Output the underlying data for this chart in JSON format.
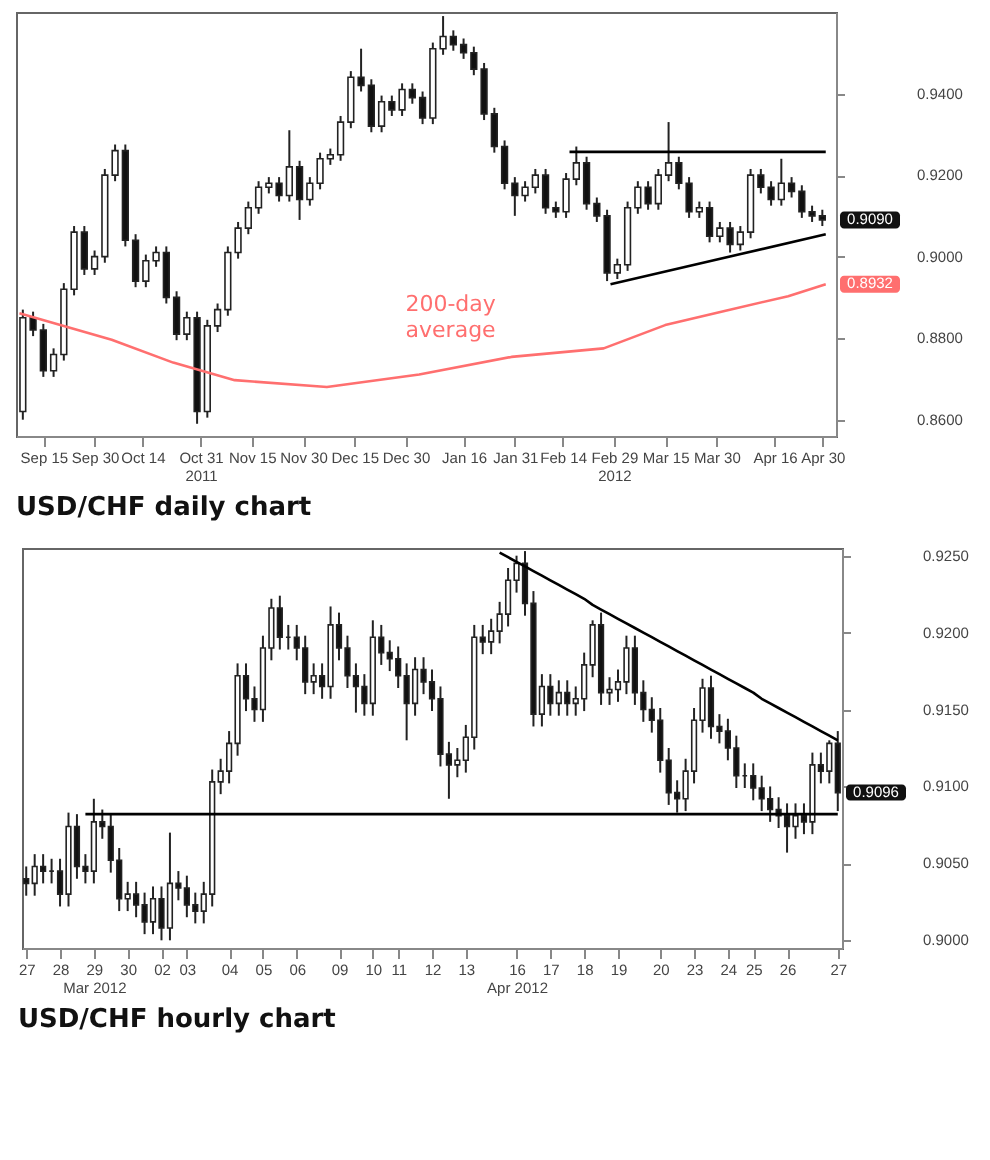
{
  "chart_data": [
    {
      "type": "candlestick",
      "title": "USD/CHF daily chart",
      "x": [
        "2011-09-09",
        "2011-09-12",
        "2011-09-15",
        "2011-09-18",
        "2011-09-21",
        "2011-09-24",
        "2011-09-27",
        "2011-09-30",
        "2011-10-03",
        "2011-10-06",
        "2011-10-09",
        "2011-10-12",
        "2011-10-15",
        "2011-10-18",
        "2011-10-21",
        "2011-10-24",
        "2011-10-27",
        "2011-10-30",
        "2011-11-02",
        "2011-11-05",
        "2011-11-08",
        "2011-11-11",
        "2011-11-14",
        "2011-11-17",
        "2011-11-20",
        "2011-11-23",
        "2011-11-26",
        "2011-11-29",
        "2011-12-02",
        "2011-12-05",
        "2011-12-08",
        "2011-12-11",
        "2011-12-14",
        "2011-12-17",
        "2011-12-20",
        "2011-12-23",
        "2011-12-26",
        "2011-12-29",
        "2012-01-01",
        "2012-01-04",
        "2012-01-07",
        "2012-01-10",
        "2012-01-13",
        "2012-01-16",
        "2012-01-19",
        "2012-01-22",
        "2012-01-25",
        "2012-01-28",
        "2012-01-31",
        "2012-02-03",
        "2012-02-06",
        "2012-02-09",
        "2012-02-12",
        "2012-02-15",
        "2012-02-18",
        "2012-02-21",
        "2012-02-24",
        "2012-02-27",
        "2012-03-01",
        "2012-03-04",
        "2012-03-07",
        "2012-03-10",
        "2012-03-13",
        "2012-03-16",
        "2012-03-19",
        "2012-03-22",
        "2012-03-25",
        "2012-03-28",
        "2012-03-31",
        "2012-04-03",
        "2012-04-06",
        "2012-04-09",
        "2012-04-12",
        "2012-04-15",
        "2012-04-18",
        "2012-04-21",
        "2012-04-24",
        "2012-04-27",
        "2012-04-30"
      ],
      "ohlc": [
        [
          0.862,
          0.887,
          0.86,
          0.885
        ],
        [
          0.885,
          0.8865,
          0.8805,
          0.882
        ],
        [
          0.882,
          0.8835,
          0.8705,
          0.872
        ],
        [
          0.872,
          0.8775,
          0.8705,
          0.876
        ],
        [
          0.876,
          0.8935,
          0.8745,
          0.892
        ],
        [
          0.892,
          0.9075,
          0.8905,
          0.906
        ],
        [
          0.906,
          0.9075,
          0.8955,
          0.897
        ],
        [
          0.897,
          0.9015,
          0.8955,
          0.9
        ],
        [
          0.9,
          0.9215,
          0.8985,
          0.92
        ],
        [
          0.92,
          0.9275,
          0.9185,
          0.926
        ],
        [
          0.926,
          0.9275,
          0.9025,
          0.904
        ],
        [
          0.904,
          0.9055,
          0.8925,
          0.894
        ],
        [
          0.894,
          0.9005,
          0.8925,
          0.899
        ],
        [
          0.899,
          0.9025,
          0.8975,
          0.901
        ],
        [
          0.901,
          0.9025,
          0.8885,
          0.89
        ],
        [
          0.89,
          0.8915,
          0.8795,
          0.881
        ],
        [
          0.881,
          0.8865,
          0.8795,
          0.885
        ],
        [
          0.885,
          0.8865,
          0.859,
          0.862
        ],
        [
          0.862,
          0.8845,
          0.8605,
          0.883
        ],
        [
          0.883,
          0.8885,
          0.8815,
          0.887
        ],
        [
          0.887,
          0.9025,
          0.8855,
          0.901
        ],
        [
          0.901,
          0.9085,
          0.8995,
          0.907
        ],
        [
          0.907,
          0.9135,
          0.9055,
          0.912
        ],
        [
          0.912,
          0.9185,
          0.9105,
          0.917
        ],
        [
          0.917,
          0.9195,
          0.9155,
          0.918
        ],
        [
          0.918,
          0.9195,
          0.9135,
          0.915
        ],
        [
          0.915,
          0.931,
          0.9135,
          0.922
        ],
        [
          0.922,
          0.9235,
          0.909,
          0.914
        ],
        [
          0.914,
          0.9195,
          0.9125,
          0.918
        ],
        [
          0.918,
          0.9255,
          0.9165,
          0.924
        ],
        [
          0.924,
          0.9265,
          0.9225,
          0.925
        ],
        [
          0.925,
          0.9345,
          0.9235,
          0.933
        ],
        [
          0.933,
          0.9455,
          0.9315,
          0.944
        ],
        [
          0.944,
          0.951,
          0.9405,
          0.942
        ],
        [
          0.942,
          0.9435,
          0.9305,
          0.932
        ],
        [
          0.932,
          0.9395,
          0.9305,
          0.938
        ],
        [
          0.938,
          0.9395,
          0.9345,
          0.936
        ],
        [
          0.936,
          0.9425,
          0.9345,
          0.941
        ],
        [
          0.941,
          0.9425,
          0.9375,
          0.939
        ],
        [
          0.939,
          0.9405,
          0.9325,
          0.934
        ],
        [
          0.934,
          0.9525,
          0.9325,
          0.951
        ],
        [
          0.951,
          0.959,
          0.9495,
          0.954
        ],
        [
          0.954,
          0.9555,
          0.9505,
          0.952
        ],
        [
          0.952,
          0.9535,
          0.9485,
          0.95
        ],
        [
          0.95,
          0.9515,
          0.9445,
          0.946
        ],
        [
          0.946,
          0.9475,
          0.9335,
          0.935
        ],
        [
          0.935,
          0.9365,
          0.9255,
          0.927
        ],
        [
          0.927,
          0.9285,
          0.9165,
          0.918
        ],
        [
          0.918,
          0.9195,
          0.91,
          0.915
        ],
        [
          0.915,
          0.9185,
          0.9135,
          0.917
        ],
        [
          0.917,
          0.9215,
          0.9155,
          0.92
        ],
        [
          0.92,
          0.9215,
          0.9105,
          0.912
        ],
        [
          0.912,
          0.9135,
          0.9095,
          0.911
        ],
        [
          0.911,
          0.9205,
          0.9095,
          0.919
        ],
        [
          0.919,
          0.927,
          0.9175,
          0.923
        ],
        [
          0.923,
          0.9245,
          0.9115,
          0.913
        ],
        [
          0.913,
          0.9145,
          0.9085,
          0.91
        ],
        [
          0.91,
          0.9115,
          0.894,
          0.896
        ],
        [
          0.896,
          0.8995,
          0.8945,
          0.898
        ],
        [
          0.898,
          0.9135,
          0.8965,
          0.912
        ],
        [
          0.912,
          0.9185,
          0.9105,
          0.917
        ],
        [
          0.917,
          0.9185,
          0.9115,
          0.913
        ],
        [
          0.913,
          0.9215,
          0.9115,
          0.92
        ],
        [
          0.92,
          0.933,
          0.9185,
          0.923
        ],
        [
          0.923,
          0.9245,
          0.9165,
          0.918
        ],
        [
          0.918,
          0.9195,
          0.9095,
          0.911
        ],
        [
          0.911,
          0.9135,
          0.9095,
          0.912
        ],
        [
          0.912,
          0.9135,
          0.9035,
          0.905
        ],
        [
          0.905,
          0.9085,
          0.9035,
          0.907
        ],
        [
          0.907,
          0.9085,
          0.901,
          0.903
        ],
        [
          0.903,
          0.9075,
          0.9015,
          0.906
        ],
        [
          0.906,
          0.9215,
          0.9045,
          0.92
        ],
        [
          0.92,
          0.9215,
          0.9155,
          0.917
        ],
        [
          0.917,
          0.9185,
          0.9125,
          0.914
        ],
        [
          0.914,
          0.924,
          0.9125,
          0.918
        ],
        [
          0.918,
          0.9195,
          0.9145,
          0.916
        ],
        [
          0.916,
          0.9175,
          0.9095,
          0.911
        ],
        [
          0.911,
          0.9125,
          0.9085,
          0.91
        ],
        [
          0.91,
          0.9115,
          0.9075,
          0.909
        ]
      ],
      "series": [
        {
          "type": "line",
          "color": "#ff6f6f",
          "x": [
            "2011-09-08",
            "2011-10-05",
            "2011-10-23",
            "2011-11-10",
            "2011-12-07",
            "2012-01-03",
            "2012-01-30",
            "2012-02-26",
            "2012-03-15",
            "2012-04-02",
            "2012-04-20",
            "2012-05-01"
          ],
          "values": [
            0.8861,
            0.8796,
            0.874,
            0.8697,
            0.868,
            0.8711,
            0.8754,
            0.8775,
            0.8832,
            0.8868,
            0.8903,
            0.8932
          ]
        },
        {
          "type": "line",
          "color": "#000000",
          "x": [
            "2012-02-16",
            "2012-05-01"
          ],
          "values": [
            0.9257,
            0.9257
          ]
        },
        {
          "type": "line",
          "color": "#000000",
          "x": [
            "2012-02-28",
            "2012-05-01"
          ],
          "values": [
            0.8932,
            0.9055
          ]
        }
      ],
      "xlim": [
        "2011-09-07",
        "2012-05-04"
      ],
      "xticks": [
        {
          "value": "2011-09-15",
          "label": "Sep 15"
        },
        {
          "value": "2011-09-30",
          "label": "Sep 30"
        },
        {
          "value": "2011-10-14",
          "label": "Oct 14"
        },
        {
          "value": "2011-10-31",
          "label": "Oct 31\n2011"
        },
        {
          "value": "2011-11-15",
          "label": "Nov 15"
        },
        {
          "value": "2011-11-30",
          "label": "Nov 30"
        },
        {
          "value": "2011-12-15",
          "label": "Dec 15"
        },
        {
          "value": "2011-12-30",
          "label": "Dec 30"
        },
        {
          "value": "2012-01-16",
          "label": "Jan 16"
        },
        {
          "value": "2012-01-31",
          "label": "Jan 31"
        },
        {
          "value": "2012-02-14",
          "label": "Feb 14"
        },
        {
          "value": "2012-02-29",
          "label": "Feb 29\n2012"
        },
        {
          "value": "2012-03-15",
          "label": "Mar 15"
        },
        {
          "value": "2012-03-30",
          "label": "Mar 30"
        },
        {
          "value": "2012-04-16",
          "label": "Apr 16"
        },
        {
          "value": "2012-04-30",
          "label": "Apr 30"
        }
      ],
      "ylim": [
        0.856,
        0.96
      ],
      "yticks": [
        {
          "value": 0.86,
          "label": "0.8600"
        },
        {
          "value": 0.88,
          "label": "0.8800"
        },
        {
          "value": 0.9,
          "label": "0.9000"
        },
        {
          "value": 0.92,
          "label": "0.9200"
        },
        {
          "value": 0.94,
          "label": "0.9400"
        }
      ],
      "annotations": [
        "0.9090",
        "0.8932",
        "200-day\naverage"
      ]
    },
    {
      "type": "candlestick",
      "title": "USD/CHF hourly chart",
      "categories": [
        "27",
        null,
        null,
        null,
        "28",
        null,
        null,
        null,
        "29\nMar 2012",
        null,
        null,
        null,
        "30",
        null,
        null,
        null,
        "02",
        null,
        null,
        "03",
        null,
        null,
        null,
        null,
        "04",
        null,
        null,
        null,
        "05",
        null,
        null,
        null,
        "06",
        null,
        null,
        null,
        null,
        "09",
        null,
        null,
        null,
        "10",
        null,
        null,
        "11",
        null,
        null,
        null,
        "12",
        null,
        null,
        null,
        "13",
        null,
        null,
        null,
        null,
        null,
        "16\nApr 2012",
        null,
        null,
        null,
        "17",
        null,
        null,
        null,
        "18",
        null,
        null,
        null,
        "19",
        null,
        null,
        null,
        null,
        "20",
        null,
        null,
        null,
        "23",
        null,
        null,
        null,
        "24",
        null,
        null,
        "25",
        null,
        null,
        null,
        "26",
        null,
        null,
        null,
        null,
        null,
        "27"
      ],
      "ohlc": [
        [
          0.904,
          0.9048,
          0.9029,
          0.9037
        ],
        [
          0.9037,
          0.9056,
          0.9029,
          0.9048
        ],
        [
          0.9048,
          0.9056,
          0.9037,
          0.9045
        ],
        [
          0.9045,
          0.9053,
          0.9037,
          0.9045
        ],
        [
          0.9045,
          0.9053,
          0.9022,
          0.903
        ],
        [
          0.903,
          0.9083,
          0.9022,
          0.9074
        ],
        [
          0.9074,
          0.9082,
          0.904,
          0.9048
        ],
        [
          0.9048,
          0.9056,
          0.9037,
          0.9045
        ],
        [
          0.9045,
          0.9092,
          0.9037,
          0.9077
        ],
        [
          0.9077,
          0.9085,
          0.9066,
          0.9074
        ],
        [
          0.9074,
          0.9082,
          0.9044,
          0.9052
        ],
        [
          0.9052,
          0.906,
          0.9019,
          0.9027
        ],
        [
          0.9027,
          0.9038,
          0.9019,
          0.903
        ],
        [
          0.903,
          0.9038,
          0.9015,
          0.9023
        ],
        [
          0.9023,
          0.9031,
          0.9004,
          0.9012
        ],
        [
          0.9012,
          0.9035,
          0.9004,
          0.9027
        ],
        [
          0.9027,
          0.9035,
          0.9,
          0.9008
        ],
        [
          0.9008,
          0.907,
          0.9,
          0.9037
        ],
        [
          0.9037,
          0.9045,
          0.9026,
          0.9034
        ],
        [
          0.9034,
          0.9042,
          0.9015,
          0.9023
        ],
        [
          0.9023,
          0.9031,
          0.9011,
          0.9019
        ],
        [
          0.9019,
          0.9038,
          0.9011,
          0.903
        ],
        [
          0.903,
          0.9111,
          0.9022,
          0.9103
        ],
        [
          0.9103,
          0.9118,
          0.9095,
          0.911
        ],
        [
          0.911,
          0.9136,
          0.9102,
          0.9128
        ],
        [
          0.9128,
          0.918,
          0.912,
          0.9172
        ],
        [
          0.9172,
          0.918,
          0.9149,
          0.9157
        ],
        [
          0.9157,
          0.9165,
          0.9142,
          0.915
        ],
        [
          0.915,
          0.9198,
          0.9142,
          0.919
        ],
        [
          0.919,
          0.9222,
          0.9182,
          0.9216
        ],
        [
          0.9216,
          0.9224,
          0.9189,
          0.9197
        ],
        [
          0.9197,
          0.9205,
          0.9189,
          0.9197
        ],
        [
          0.9197,
          0.9205,
          0.9182,
          0.919
        ],
        [
          0.919,
          0.9198,
          0.916,
          0.9168
        ],
        [
          0.9168,
          0.918,
          0.916,
          0.9172
        ],
        [
          0.9172,
          0.918,
          0.9157,
          0.9165
        ],
        [
          0.9165,
          0.9217,
          0.9157,
          0.9205
        ],
        [
          0.9205,
          0.9213,
          0.9182,
          0.919
        ],
        [
          0.919,
          0.9198,
          0.9164,
          0.9172
        ],
        [
          0.9172,
          0.918,
          0.9148,
          0.9165
        ],
        [
          0.9165,
          0.9173,
          0.9146,
          0.9154
        ],
        [
          0.9154,
          0.9208,
          0.9146,
          0.9197
        ],
        [
          0.9197,
          0.9205,
          0.9179,
          0.9187
        ],
        [
          0.9187,
          0.9195,
          0.9175,
          0.9183
        ],
        [
          0.9183,
          0.9191,
          0.9164,
          0.9172
        ],
        [
          0.9172,
          0.918,
          0.913,
          0.9154
        ],
        [
          0.9154,
          0.9184,
          0.9146,
          0.9176
        ],
        [
          0.9176,
          0.9184,
          0.916,
          0.9168
        ],
        [
          0.9168,
          0.9176,
          0.9149,
          0.9157
        ],
        [
          0.9157,
          0.9165,
          0.9113,
          0.9121
        ],
        [
          0.9121,
          0.9129,
          0.9092,
          0.9114
        ],
        [
          0.9114,
          0.9125,
          0.9106,
          0.9117
        ],
        [
          0.9117,
          0.914,
          0.9109,
          0.9132
        ],
        [
          0.9132,
          0.9205,
          0.9124,
          0.9197
        ],
        [
          0.9197,
          0.9205,
          0.9186,
          0.9194
        ],
        [
          0.9194,
          0.9209,
          0.9186,
          0.9201
        ],
        [
          0.9201,
          0.922,
          0.9193,
          0.9212
        ],
        [
          0.9212,
          0.9242,
          0.9204,
          0.9234
        ],
        [
          0.9234,
          0.925,
          0.9226,
          0.9245
        ],
        [
          0.9245,
          0.9253,
          0.9211,
          0.9219
        ],
        [
          0.9219,
          0.9227,
          0.9139,
          0.9147
        ],
        [
          0.9147,
          0.9173,
          0.9139,
          0.9165
        ],
        [
          0.9165,
          0.9173,
          0.9146,
          0.9154
        ],
        [
          0.9154,
          0.9169,
          0.9146,
          0.9161
        ],
        [
          0.9161,
          0.9169,
          0.9146,
          0.9154
        ],
        [
          0.9154,
          0.9165,
          0.9146,
          0.9157
        ],
        [
          0.9157,
          0.9187,
          0.9149,
          0.9179
        ],
        [
          0.9179,
          0.9208,
          0.9171,
          0.9205
        ],
        [
          0.9205,
          0.9213,
          0.9153,
          0.9161
        ],
        [
          0.9161,
          0.9171,
          0.9153,
          0.9163
        ],
        [
          0.9163,
          0.9176,
          0.9155,
          0.9168
        ],
        [
          0.9168,
          0.9198,
          0.916,
          0.919
        ],
        [
          0.919,
          0.9198,
          0.9153,
          0.9161
        ],
        [
          0.9161,
          0.9169,
          0.9142,
          0.915
        ],
        [
          0.915,
          0.9158,
          0.9135,
          0.9143
        ],
        [
          0.9143,
          0.9151,
          0.9109,
          0.9117
        ],
        [
          0.9117,
          0.9125,
          0.9088,
          0.9096
        ],
        [
          0.9096,
          0.9104,
          0.9083,
          0.9092
        ],
        [
          0.9092,
          0.9118,
          0.9084,
          0.911
        ],
        [
          0.911,
          0.9151,
          0.9102,
          0.9143
        ],
        [
          0.9143,
          0.917,
          0.9135,
          0.9164
        ],
        [
          0.9164,
          0.9172,
          0.9131,
          0.9139
        ],
        [
          0.9139,
          0.9147,
          0.9128,
          0.9136
        ],
        [
          0.9136,
          0.9144,
          0.9117,
          0.9125
        ],
        [
          0.9125,
          0.9133,
          0.9099,
          0.9107
        ],
        [
          0.9107,
          0.9115,
          0.9099,
          0.9107
        ],
        [
          0.9107,
          0.9115,
          0.9091,
          0.9099
        ],
        [
          0.9099,
          0.9107,
          0.9084,
          0.9092
        ],
        [
          0.9092,
          0.91,
          0.9077,
          0.9085
        ],
        [
          0.9085,
          0.9093,
          0.9073,
          0.9081
        ],
        [
          0.9081,
          0.9089,
          0.9057,
          0.9074
        ],
        [
          0.9074,
          0.9089,
          0.9066,
          0.9081
        ],
        [
          0.9081,
          0.9089,
          0.9069,
          0.9077
        ],
        [
          0.9077,
          0.9122,
          0.9069,
          0.9114
        ],
        [
          0.9114,
          0.9122,
          0.9102,
          0.911
        ],
        [
          0.911,
          0.913,
          0.9102,
          0.9128
        ],
        [
          0.9128,
          0.9136,
          0.9084,
          0.9096
        ]
      ],
      "series": [
        {
          "type": "line",
          "color": "#000000",
          "values": [
            null,
            null,
            null,
            null,
            null,
            null,
            null,
            0.9082,
            0.9082,
            0.9082,
            0.9082,
            0.9082,
            0.9082,
            0.9082,
            0.9082,
            0.9082,
            0.9082,
            0.9082,
            0.9082,
            0.9082,
            0.9082,
            0.9082,
            0.9082,
            0.9082,
            0.9082,
            0.9082,
            0.9082,
            0.9082,
            0.9082,
            0.9082,
            0.9082,
            0.9082,
            0.9082,
            0.9082,
            0.9082,
            0.9082,
            0.9082,
            0.9082,
            0.9082,
            0.9082,
            0.9082,
            0.9082,
            0.9082,
            0.9082,
            0.9082,
            0.9082,
            0.9082,
            0.9082,
            0.9082,
            0.9082,
            0.9082,
            0.9082,
            0.9082,
            0.9082,
            0.9082,
            0.9082,
            0.9082,
            0.9082,
            0.9082,
            0.9082,
            0.9082,
            0.9082,
            0.9082,
            0.9082,
            0.9082,
            0.9082,
            0.9082,
            0.9082,
            0.9082,
            0.9082,
            0.9082,
            0.9082,
            0.9082,
            0.9082,
            0.9082,
            0.9082,
            0.9082,
            0.9082,
            0.9082,
            0.9082,
            0.9082,
            0.9082,
            0.9082,
            0.9082,
            0.9082,
            0.9082,
            0.9082,
            0.9082,
            0.9082,
            0.9082,
            0.9082,
            0.9082,
            0.9082,
            0.9082,
            0.9082,
            0.9082,
            0.9082
          ]
        },
        {
          "type": "line",
          "color": "#000000",
          "values": [
            null,
            null,
            null,
            null,
            null,
            null,
            null,
            null,
            null,
            null,
            null,
            null,
            null,
            null,
            null,
            null,
            null,
            null,
            null,
            null,
            null,
            null,
            null,
            null,
            null,
            null,
            null,
            null,
            null,
            null,
            null,
            null,
            null,
            null,
            null,
            null,
            null,
            null,
            null,
            null,
            null,
            null,
            null,
            null,
            null,
            null,
            null,
            null,
            null,
            null,
            null,
            null,
            null,
            null,
            null,
            null,
            0.9252,
            0.9249,
            0.9246,
            0.9243,
            0.924,
            0.9237,
            0.9234,
            0.9231,
            0.9228,
            0.9225,
            0.9222,
            0.9218,
            0.9215,
            0.9212,
            0.9209,
            0.9206,
            0.9203,
            0.92,
            0.9197,
            0.9194,
            0.9191,
            0.9188,
            0.9185,
            0.9182,
            0.9179,
            0.9176,
            0.9173,
            0.917,
            0.9167,
            0.9164,
            0.9161,
            0.9157,
            0.9154,
            0.9151,
            0.9148,
            0.9145,
            0.9142,
            0.9139,
            0.9136,
            0.9133,
            0.913
          ]
        }
      ],
      "ylim": [
        0.8995,
        0.9255
      ],
      "yticks": [
        {
          "value": 0.9,
          "label": "0.9000"
        },
        {
          "value": 0.905,
          "label": "0.9050"
        },
        {
          "value": 0.91,
          "label": "0.9100"
        },
        {
          "value": 0.915,
          "label": "0.9150"
        },
        {
          "value": 0.92,
          "label": "0.9200"
        },
        {
          "value": 0.925,
          "label": "0.9250"
        }
      ],
      "annotations": [
        "0.9096"
      ]
    }
  ]
}
